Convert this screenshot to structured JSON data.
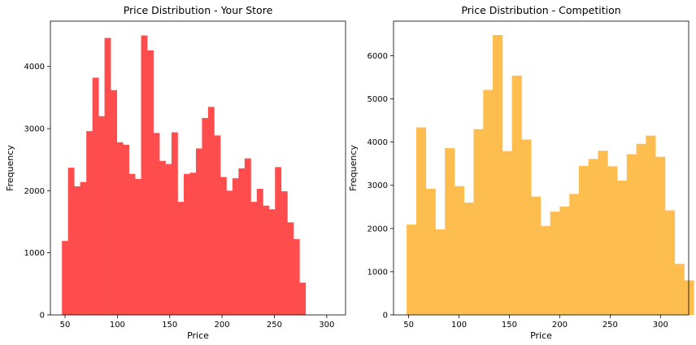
{
  "chart_data": [
    {
      "type": "bar",
      "title": "Price Distribution - Your Store",
      "xlabel": "Price",
      "ylabel": "Frequency",
      "color": "#ff4d4d",
      "xlim": [
        36,
        318
      ],
      "ylim": [
        0,
        4730
      ],
      "xticks": [
        50,
        100,
        150,
        200,
        250,
        300
      ],
      "yticks": [
        0,
        1000,
        2000,
        3000,
        4000
      ],
      "grid": false,
      "bins": [
        {
          "x0": 47.0,
          "x1": 52.8,
          "count": 1190
        },
        {
          "x0": 52.8,
          "x1": 58.6,
          "count": 2370
        },
        {
          "x0": 58.6,
          "x1": 64.4,
          "count": 2070
        },
        {
          "x0": 64.4,
          "x1": 70.3,
          "count": 2140
        },
        {
          "x0": 70.3,
          "x1": 76.1,
          "count": 2960
        },
        {
          "x0": 76.1,
          "x1": 81.9,
          "count": 3820
        },
        {
          "x0": 81.9,
          "x1": 87.7,
          "count": 3200
        },
        {
          "x0": 87.7,
          "x1": 93.5,
          "count": 4460
        },
        {
          "x0": 93.5,
          "x1": 99.4,
          "count": 3620
        },
        {
          "x0": 99.4,
          "x1": 105.2,
          "count": 2780
        },
        {
          "x0": 105.2,
          "x1": 111.0,
          "count": 2740
        },
        {
          "x0": 111.0,
          "x1": 116.8,
          "count": 2270
        },
        {
          "x0": 116.8,
          "x1": 122.6,
          "count": 2190
        },
        {
          "x0": 122.6,
          "x1": 128.4,
          "count": 4500
        },
        {
          "x0": 128.4,
          "x1": 134.3,
          "count": 4260
        },
        {
          "x0": 134.3,
          "x1": 140.1,
          "count": 2930
        },
        {
          "x0": 140.1,
          "x1": 145.9,
          "count": 2480
        },
        {
          "x0": 145.9,
          "x1": 151.7,
          "count": 2430
        },
        {
          "x0": 151.7,
          "x1": 157.5,
          "count": 2940
        },
        {
          "x0": 157.5,
          "x1": 163.4,
          "count": 1820
        },
        {
          "x0": 163.4,
          "x1": 169.2,
          "count": 2270
        },
        {
          "x0": 169.2,
          "x1": 175.0,
          "count": 2290
        },
        {
          "x0": 175.0,
          "x1": 180.8,
          "count": 2680
        },
        {
          "x0": 180.8,
          "x1": 186.6,
          "count": 3170
        },
        {
          "x0": 186.6,
          "x1": 192.4,
          "count": 3350
        },
        {
          "x0": 192.4,
          "x1": 198.3,
          "count": 2890
        },
        {
          "x0": 198.3,
          "x1": 204.1,
          "count": 2220
        },
        {
          "x0": 204.1,
          "x1": 209.9,
          "count": 2000
        },
        {
          "x0": 209.9,
          "x1": 215.7,
          "count": 2200
        },
        {
          "x0": 215.7,
          "x1": 221.5,
          "count": 2360
        },
        {
          "x0": 221.5,
          "x1": 227.4,
          "count": 2520
        },
        {
          "x0": 227.4,
          "x1": 233.2,
          "count": 1820
        },
        {
          "x0": 233.2,
          "x1": 239.0,
          "count": 2030
        },
        {
          "x0": 239.0,
          "x1": 244.8,
          "count": 1760
        },
        {
          "x0": 244.8,
          "x1": 250.6,
          "count": 1700
        },
        {
          "x0": 250.6,
          "x1": 256.4,
          "count": 2380
        },
        {
          "x0": 256.4,
          "x1": 262.3,
          "count": 1990
        },
        {
          "x0": 262.3,
          "x1": 268.1,
          "count": 1490
        },
        {
          "x0": 268.1,
          "x1": 273.9,
          "count": 1220
        },
        {
          "x0": 273.9,
          "x1": 279.7,
          "count": 520
        }
      ]
    },
    {
      "type": "bar",
      "title": "Price Distribution - Competition",
      "xlabel": "Price",
      "ylabel": "Frequency",
      "color": "#fdbe4f",
      "xlim": [
        35,
        328
      ],
      "ylim": [
        0,
        6800
      ],
      "xticks": [
        50,
        100,
        150,
        200,
        250,
        300
      ],
      "yticks": [
        0,
        1000,
        2000,
        3000,
        4000,
        5000,
        6000
      ],
      "grid": false,
      "bins": [
        {
          "x0": 48.0,
          "x1": 57.5,
          "count": 2090
        },
        {
          "x0": 57.5,
          "x1": 67.0,
          "count": 4340
        },
        {
          "x0": 67.0,
          "x1": 76.5,
          "count": 2920
        },
        {
          "x0": 76.5,
          "x1": 86.0,
          "count": 1980
        },
        {
          "x0": 86.0,
          "x1": 95.5,
          "count": 3860
        },
        {
          "x0": 95.5,
          "x1": 105.0,
          "count": 2980
        },
        {
          "x0": 105.0,
          "x1": 114.5,
          "count": 2600
        },
        {
          "x0": 114.5,
          "x1": 124.0,
          "count": 4300
        },
        {
          "x0": 124.0,
          "x1": 133.5,
          "count": 5210
        },
        {
          "x0": 133.5,
          "x1": 143.0,
          "count": 6480
        },
        {
          "x0": 143.0,
          "x1": 152.5,
          "count": 3790
        },
        {
          "x0": 152.5,
          "x1": 162.0,
          "count": 5540
        },
        {
          "x0": 162.0,
          "x1": 171.5,
          "count": 4060
        },
        {
          "x0": 171.5,
          "x1": 181.0,
          "count": 2740
        },
        {
          "x0": 181.0,
          "x1": 190.5,
          "count": 2060
        },
        {
          "x0": 190.5,
          "x1": 200.0,
          "count": 2390
        },
        {
          "x0": 200.0,
          "x1": 209.5,
          "count": 2510
        },
        {
          "x0": 209.5,
          "x1": 219.0,
          "count": 2800
        },
        {
          "x0": 219.0,
          "x1": 228.5,
          "count": 3450
        },
        {
          "x0": 228.5,
          "x1": 238.0,
          "count": 3610
        },
        {
          "x0": 238.0,
          "x1": 247.5,
          "count": 3800
        },
        {
          "x0": 247.5,
          "x1": 257.0,
          "count": 3440
        },
        {
          "x0": 257.0,
          "x1": 266.5,
          "count": 3110
        },
        {
          "x0": 266.5,
          "x1": 276.0,
          "count": 3720
        },
        {
          "x0": 276.0,
          "x1": 285.5,
          "count": 3960
        },
        {
          "x0": 285.5,
          "x1": 295.0,
          "count": 4150
        },
        {
          "x0": 295.0,
          "x1": 304.5,
          "count": 3660
        },
        {
          "x0": 304.5,
          "x1": 314.0,
          "count": 2420
        },
        {
          "x0": 314.0,
          "x1": 323.5,
          "count": 1180
        },
        {
          "x0": 323.5,
          "x1": 333.0,
          "count": 800
        }
      ]
    }
  ]
}
